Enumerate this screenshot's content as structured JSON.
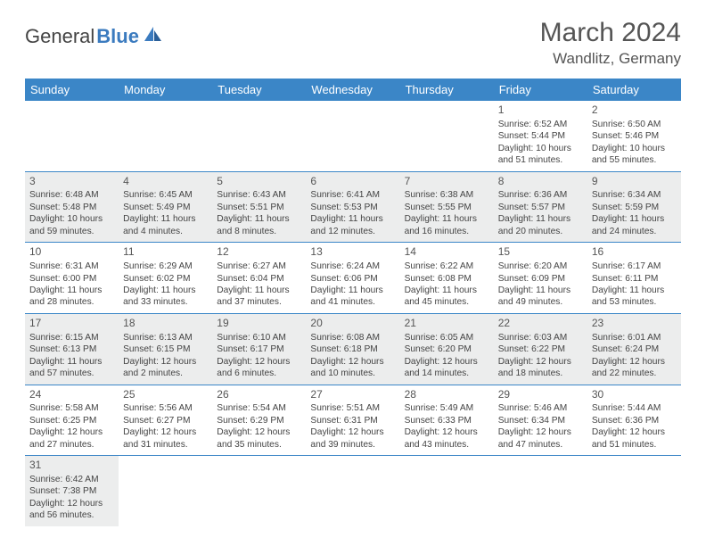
{
  "brand": {
    "part1": "General",
    "part2": "Blue"
  },
  "title": "March 2024",
  "location": "Wandlitz, Germany",
  "colors": {
    "header_bg": "#3b86c7",
    "alt_row": "#eceded"
  },
  "day_headers": [
    "Sunday",
    "Monday",
    "Tuesday",
    "Wednesday",
    "Thursday",
    "Friday",
    "Saturday"
  ],
  "weeks": [
    [
      null,
      null,
      null,
      null,
      null,
      {
        "n": "1",
        "sr": "6:52 AM",
        "ss": "5:44 PM",
        "dl": "10 hours and 51 minutes."
      },
      {
        "n": "2",
        "sr": "6:50 AM",
        "ss": "5:46 PM",
        "dl": "10 hours and 55 minutes."
      }
    ],
    [
      {
        "n": "3",
        "sr": "6:48 AM",
        "ss": "5:48 PM",
        "dl": "10 hours and 59 minutes."
      },
      {
        "n": "4",
        "sr": "6:45 AM",
        "ss": "5:49 PM",
        "dl": "11 hours and 4 minutes."
      },
      {
        "n": "5",
        "sr": "6:43 AM",
        "ss": "5:51 PM",
        "dl": "11 hours and 8 minutes."
      },
      {
        "n": "6",
        "sr": "6:41 AM",
        "ss": "5:53 PM",
        "dl": "11 hours and 12 minutes."
      },
      {
        "n": "7",
        "sr": "6:38 AM",
        "ss": "5:55 PM",
        "dl": "11 hours and 16 minutes."
      },
      {
        "n": "8",
        "sr": "6:36 AM",
        "ss": "5:57 PM",
        "dl": "11 hours and 20 minutes."
      },
      {
        "n": "9",
        "sr": "6:34 AM",
        "ss": "5:59 PM",
        "dl": "11 hours and 24 minutes."
      }
    ],
    [
      {
        "n": "10",
        "sr": "6:31 AM",
        "ss": "6:00 PM",
        "dl": "11 hours and 28 minutes."
      },
      {
        "n": "11",
        "sr": "6:29 AM",
        "ss": "6:02 PM",
        "dl": "11 hours and 33 minutes."
      },
      {
        "n": "12",
        "sr": "6:27 AM",
        "ss": "6:04 PM",
        "dl": "11 hours and 37 minutes."
      },
      {
        "n": "13",
        "sr": "6:24 AM",
        "ss": "6:06 PM",
        "dl": "11 hours and 41 minutes."
      },
      {
        "n": "14",
        "sr": "6:22 AM",
        "ss": "6:08 PM",
        "dl": "11 hours and 45 minutes."
      },
      {
        "n": "15",
        "sr": "6:20 AM",
        "ss": "6:09 PM",
        "dl": "11 hours and 49 minutes."
      },
      {
        "n": "16",
        "sr": "6:17 AM",
        "ss": "6:11 PM",
        "dl": "11 hours and 53 minutes."
      }
    ],
    [
      {
        "n": "17",
        "sr": "6:15 AM",
        "ss": "6:13 PM",
        "dl": "11 hours and 57 minutes."
      },
      {
        "n": "18",
        "sr": "6:13 AM",
        "ss": "6:15 PM",
        "dl": "12 hours and 2 minutes."
      },
      {
        "n": "19",
        "sr": "6:10 AM",
        "ss": "6:17 PM",
        "dl": "12 hours and 6 minutes."
      },
      {
        "n": "20",
        "sr": "6:08 AM",
        "ss": "6:18 PM",
        "dl": "12 hours and 10 minutes."
      },
      {
        "n": "21",
        "sr": "6:05 AM",
        "ss": "6:20 PM",
        "dl": "12 hours and 14 minutes."
      },
      {
        "n": "22",
        "sr": "6:03 AM",
        "ss": "6:22 PM",
        "dl": "12 hours and 18 minutes."
      },
      {
        "n": "23",
        "sr": "6:01 AM",
        "ss": "6:24 PM",
        "dl": "12 hours and 22 minutes."
      }
    ],
    [
      {
        "n": "24",
        "sr": "5:58 AM",
        "ss": "6:25 PM",
        "dl": "12 hours and 27 minutes."
      },
      {
        "n": "25",
        "sr": "5:56 AM",
        "ss": "6:27 PM",
        "dl": "12 hours and 31 minutes."
      },
      {
        "n": "26",
        "sr": "5:54 AM",
        "ss": "6:29 PM",
        "dl": "12 hours and 35 minutes."
      },
      {
        "n": "27",
        "sr": "5:51 AM",
        "ss": "6:31 PM",
        "dl": "12 hours and 39 minutes."
      },
      {
        "n": "28",
        "sr": "5:49 AM",
        "ss": "6:33 PM",
        "dl": "12 hours and 43 minutes."
      },
      {
        "n": "29",
        "sr": "5:46 AM",
        "ss": "6:34 PM",
        "dl": "12 hours and 47 minutes."
      },
      {
        "n": "30",
        "sr": "5:44 AM",
        "ss": "6:36 PM",
        "dl": "12 hours and 51 minutes."
      }
    ],
    [
      {
        "n": "31",
        "sr": "6:42 AM",
        "ss": "7:38 PM",
        "dl": "12 hours and 56 minutes."
      },
      null,
      null,
      null,
      null,
      null,
      null
    ]
  ],
  "labels": {
    "sunrise": "Sunrise:",
    "sunset": "Sunset:",
    "daylight": "Daylight:"
  }
}
